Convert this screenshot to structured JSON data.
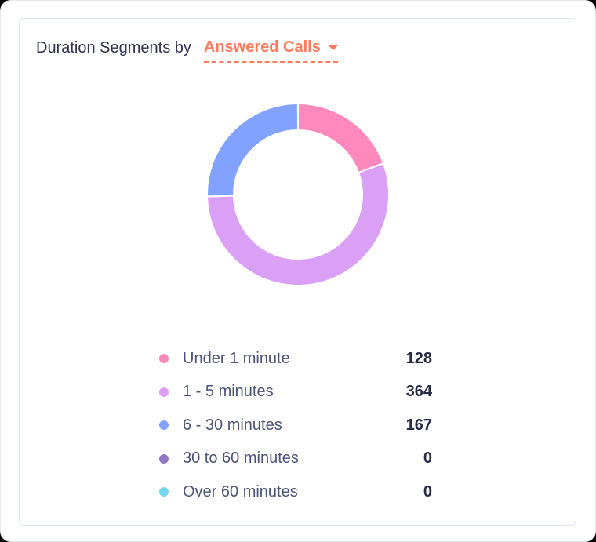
{
  "header": {
    "title": "Duration Segments by",
    "dropdown_label": "Answered Calls",
    "dropdown_icon": "caret-down-icon"
  },
  "colors": {
    "accent": "#ff7b5c",
    "title": "#2e3450",
    "legend_text": "#4a5478",
    "value_text": "#262c44"
  },
  "legend": [
    {
      "label": "Under 1 minute",
      "value": "128",
      "color": "#ff88bd"
    },
    {
      "label": "1 - 5 minutes",
      "value": "364",
      "color": "#d9a0f5"
    },
    {
      "label": "6 - 30 minutes",
      "value": "167",
      "color": "#82a2ff"
    },
    {
      "label": "30 to 60 minutes",
      "value": "0",
      "color": "#9178c4"
    },
    {
      "label": "Over 60 minutes",
      "value": "0",
      "color": "#73d8ee"
    }
  ],
  "chart_data": {
    "type": "pie",
    "subtype": "donut",
    "title": "Duration Segments by Answered Calls",
    "categories": [
      "Under 1 minute",
      "1 - 5 minutes",
      "6 - 30 minutes",
      "30 to 60 minutes",
      "Over 60 minutes"
    ],
    "values": [
      128,
      364,
      167,
      0,
      0
    ],
    "colors": [
      "#ff88bd",
      "#d9a0f5",
      "#82a2ff",
      "#9178c4",
      "#73d8ee"
    ],
    "legend_position": "bottom"
  }
}
